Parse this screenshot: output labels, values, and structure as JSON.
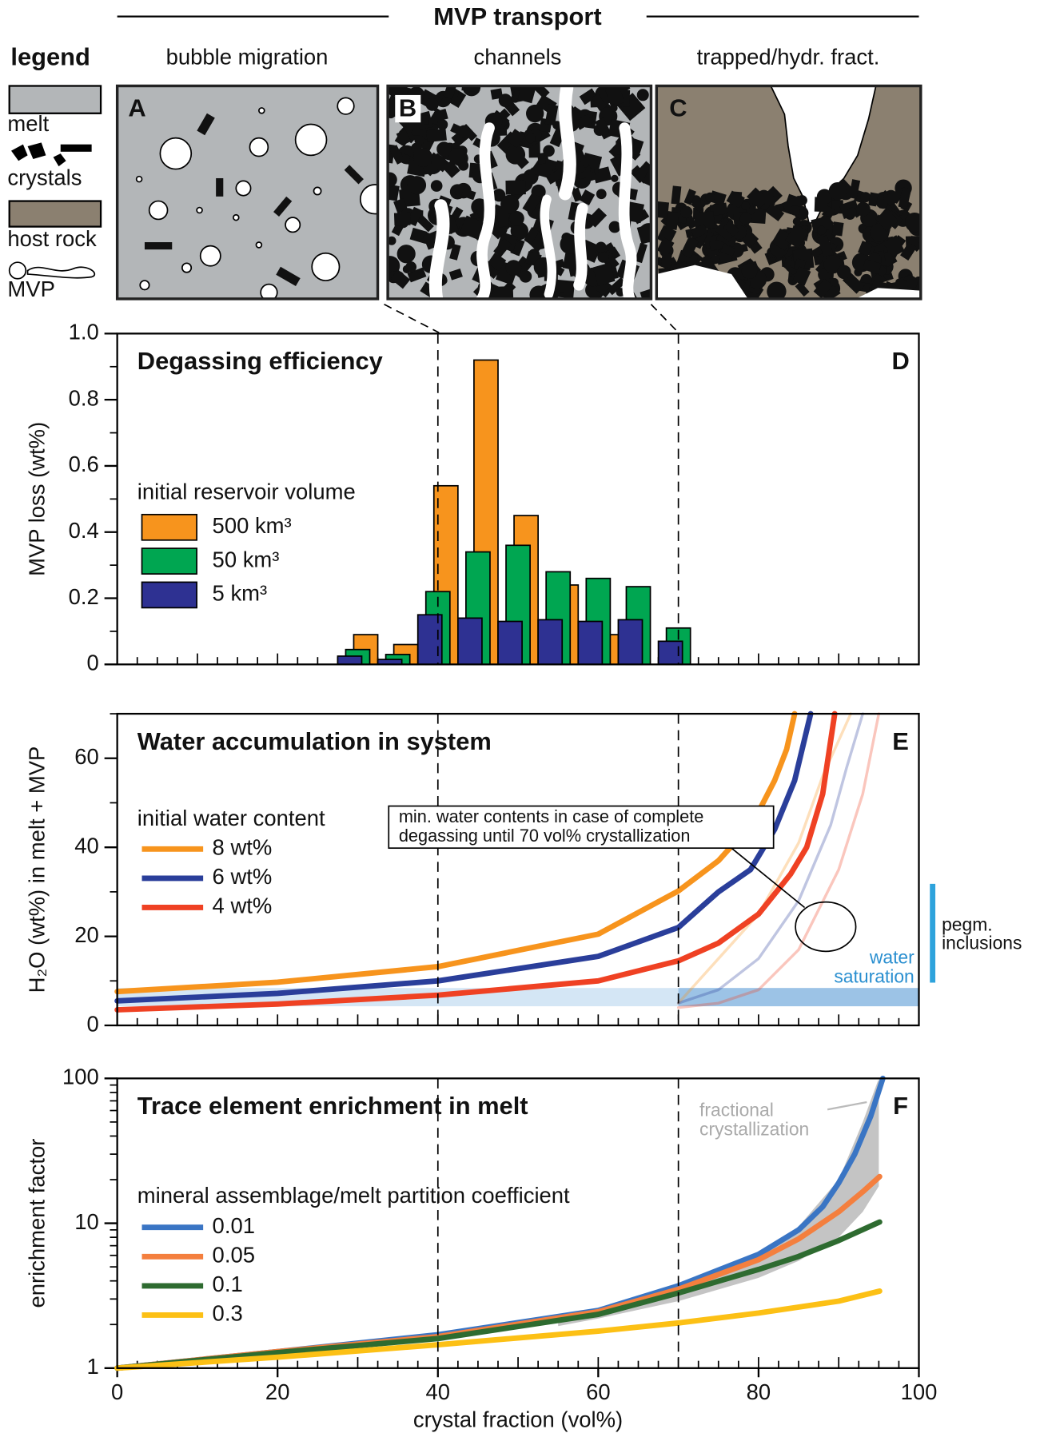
{
  "header": {
    "title": "MVP transport",
    "legend_title": "legend",
    "columns": [
      "bubble migration",
      "channels",
      "trapped/hydr. fract."
    ],
    "panel_letters": [
      "A",
      "B",
      "C"
    ],
    "legend_items": [
      "melt",
      "crystals",
      "host rock",
      "MVP"
    ]
  },
  "chart_data": [
    {
      "type": "bar",
      "panel": "D",
      "title": "Degassing efficiency",
      "ylabel": "MVP loss (wt%)",
      "legend_title": "initial reservoir volume",
      "x": [
        30,
        35,
        40,
        45,
        50,
        55,
        60,
        65,
        70
      ],
      "series": [
        {
          "name": "500 km³",
          "color": "#f7941d",
          "values": [
            0.09,
            0.06,
            0.54,
            0.92,
            0.45,
            0.24,
            0.09,
            null,
            null
          ]
        },
        {
          "name": "50 km³",
          "color": "#00a651",
          "values": [
            0.045,
            0.03,
            0.22,
            0.34,
            0.36,
            0.28,
            0.26,
            0.235,
            0.11
          ]
        },
        {
          "name": "5 km³",
          "color": "#2e3192",
          "values": [
            0.025,
            0.015,
            0.15,
            0.14,
            0.13,
            0.135,
            0.13,
            0.135,
            0.07
          ]
        }
      ],
      "xlim": [
        0,
        100
      ],
      "ylim": [
        0,
        1
      ],
      "yticks": [
        0,
        0.2,
        0.4,
        0.6,
        0.8,
        {
          "value": 1,
          "label": "1.0"
        }
      ],
      "vlines": [
        40,
        70
      ]
    },
    {
      "type": "line",
      "panel": "E",
      "title": "Water accumulation in system",
      "ylabel": "H₂O (wt%) in melt + MVP",
      "legend_title": "initial water content",
      "series": [
        {
          "name": "8 wt%",
          "color": "#f7941d",
          "x": [
            0,
            20,
            40,
            60,
            70,
            75,
            78,
            80,
            82,
            83.5,
            84.5
          ],
          "values": [
            7.6,
            9.7,
            13.2,
            20.5,
            30.2,
            37,
            43,
            48,
            55,
            62,
            70
          ]
        },
        {
          "name": "6 wt%",
          "color": "#2a3e9a",
          "x": [
            0,
            20,
            40,
            60,
            70,
            75,
            79,
            82,
            84.5,
            86.5
          ],
          "values": [
            5.5,
            7.2,
            10,
            15.5,
            22,
            30,
            35,
            44,
            55,
            70
          ]
        },
        {
          "name": "4 wt%",
          "color": "#ef4123",
          "x": [
            0,
            20,
            40,
            60,
            70,
            75,
            80,
            84,
            86,
            88,
            89.5
          ],
          "values": [
            3.5,
            4.8,
            6.8,
            10,
            14.5,
            18.5,
            25,
            34,
            40,
            52,
            70
          ]
        }
      ],
      "faded_series": [
        {
          "color": "#f7941d",
          "x": [
            70,
            75,
            80,
            85,
            88,
            91.5
          ],
          "values": [
            5,
            15,
            25,
            41,
            56,
            70
          ]
        },
        {
          "color": "#2a3e9a",
          "x": [
            70,
            75,
            80,
            85,
            89,
            91,
            93
          ],
          "values": [
            5,
            8,
            15,
            28,
            45,
            58,
            70
          ]
        },
        {
          "color": "#ef4123",
          "x": [
            70,
            75,
            80,
            85,
            90,
            93,
            95
          ],
          "values": [
            4,
            5,
            8,
            17,
            35,
            52,
            70
          ]
        }
      ],
      "saturation_band": [
        4.3,
        8.4
      ],
      "water_saturation_label": [
        "water",
        "saturation"
      ],
      "pegmatite_range": [
        9.6,
        31.8
      ],
      "pegmatite_label": [
        "pegm.",
        "inclusions"
      ],
      "annotation": [
        "min. water contents in case of complete",
        "degassing until 70 vol% crystallization"
      ],
      "xlim": [
        0,
        100
      ],
      "ylim": [
        0,
        70
      ],
      "yticks": [
        0,
        20,
        40,
        60
      ],
      "vlines": [
        40,
        70
      ]
    },
    {
      "type": "line",
      "panel": "F",
      "title": "Trace element enrichment in melt",
      "ylabel": "enrichment factor",
      "xlabel": "crystal fraction (vol%)",
      "legend_title": "mineral assemblage/melt partition coefficient",
      "log": true,
      "series": [
        {
          "name": "0.01",
          "color": "#3a75c4",
          "x": [
            0,
            20,
            40,
            60,
            70,
            80,
            85,
            88,
            90,
            92,
            94,
            95.5
          ],
          "values": [
            1,
            1.3,
            1.7,
            2.5,
            3.7,
            6.1,
            9,
            13,
            19,
            30,
            55,
            100
          ]
        },
        {
          "name": "0.05",
          "color": "#f47f3e",
          "x": [
            0,
            20,
            40,
            60,
            70,
            80,
            85,
            90,
            93,
            95.1
          ],
          "values": [
            1,
            1.3,
            1.65,
            2.45,
            3.5,
            5.6,
            7.8,
            12,
            16.5,
            21
          ]
        },
        {
          "name": "0.1",
          "color": "#2e6b30",
          "x": [
            0,
            20,
            40,
            60,
            70,
            80,
            85,
            90,
            95.1
          ],
          "values": [
            1,
            1.28,
            1.6,
            2.35,
            3.3,
            4.8,
            5.9,
            7.6,
            10.2
          ]
        },
        {
          "name": "0.3",
          "color": "#fcc015",
          "x": [
            0,
            20,
            40,
            60,
            70,
            80,
            90,
            95.1
          ],
          "values": [
            1,
            1.19,
            1.45,
            1.8,
            2.05,
            2.4,
            2.9,
            3.4
          ]
        }
      ],
      "band": {
        "color": "#c4c4c4",
        "x": [
          55,
          60,
          70,
          80,
          85,
          90,
          93,
          95
        ],
        "low": [
          1.95,
          2.2,
          2.9,
          4.2,
          5.5,
          8,
          12,
          18
        ],
        "high": [
          2.1,
          2.5,
          3.6,
          6,
          9.5,
          20,
          50,
          100
        ]
      },
      "band_label": [
        "fractional",
        "crystallization"
      ],
      "xlim": [
        0,
        100
      ],
      "ylim": [
        1,
        100
      ],
      "xticks": [
        0,
        20,
        40,
        60,
        80,
        100
      ],
      "yticks": [
        1,
        10,
        100
      ],
      "vlines": [
        40,
        70
      ]
    }
  ]
}
